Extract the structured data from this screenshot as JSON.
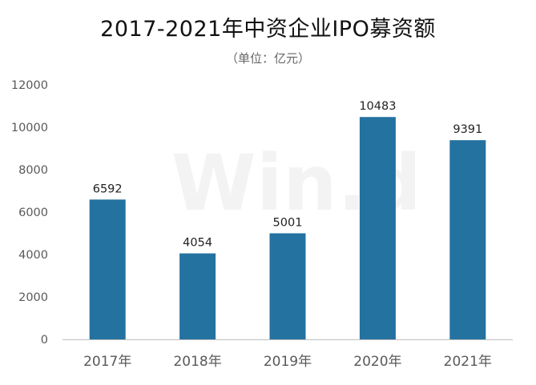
{
  "chart_data": {
    "type": "bar",
    "title": "2017-2021年中资企业IPO募资额",
    "subtitle": "（单位：亿元）",
    "categories": [
      "2017年",
      "2018年",
      "2019年",
      "2020年",
      "2021年"
    ],
    "values": [
      6592,
      4054,
      5001,
      10483,
      9391
    ],
    "data_labels": [
      "6592",
      "4054",
      "5001",
      "10483",
      "9391"
    ],
    "yticks": [
      "0",
      "2000",
      "4000",
      "6000",
      "8000",
      "10000",
      "12000"
    ],
    "ylim": [
      0,
      12000
    ],
    "grid": false,
    "bar_color": "#2472a0",
    "watermark": "Win.d"
  }
}
